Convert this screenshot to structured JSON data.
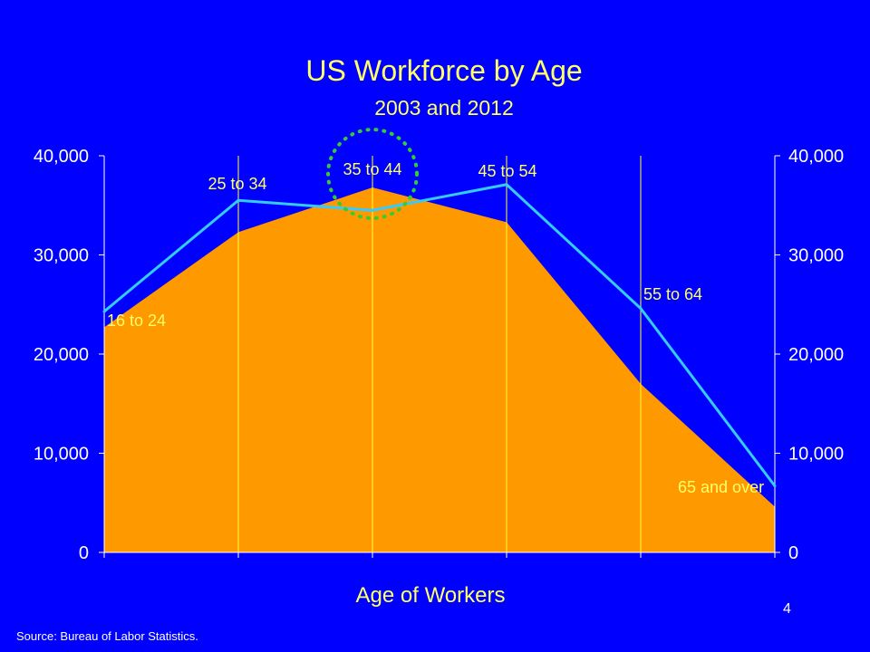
{
  "slide": {
    "title": "US Workforce by Age",
    "subtitle": "2003 and 2012",
    "source": "Source: Bureau of Labor Statistics.",
    "page_number": "4"
  },
  "colors": {
    "background": "#0000ff",
    "area_fill": "#ff9900",
    "line": "#33ccff",
    "grid_lines": "#ffff33",
    "axis_text": "#ffffff",
    "title_text": "#ffff66",
    "callout_circle": "#33cc33"
  },
  "chart_data": {
    "type": "area",
    "title": "US Workforce by Age",
    "subtitle": "2003 and 2012",
    "xlabel": "Age of Workers",
    "ylabel": "",
    "ylim": [
      0,
      40000
    ],
    "y_ticks": [
      "0",
      "10,000",
      "20,000",
      "30,000",
      "40,000"
    ],
    "y_tick_values": [
      0,
      10000,
      20000,
      30000,
      40000
    ],
    "secondary_y_ticks": [
      "0",
      "10,000",
      "20,000",
      "30,000",
      "40,000"
    ],
    "categories": [
      "16 to 24",
      "25 to 34",
      "35 to 44",
      "45 to 54",
      "55 to 64",
      "65 and over"
    ],
    "grid": "vertical lines at each category",
    "series": [
      {
        "type": "area",
        "color": "#ff9900",
        "values": [
          22700,
          32300,
          36800,
          33300,
          17000,
          4600
        ]
      },
      {
        "type": "line",
        "color": "#33ccff",
        "values": [
          24300,
          35500,
          34500,
          37100,
          24600,
          6700
        ]
      }
    ],
    "annotations": [
      {
        "type": "dotted-circle",
        "target_category": "35 to 44",
        "color": "#33cc33"
      }
    ]
  }
}
